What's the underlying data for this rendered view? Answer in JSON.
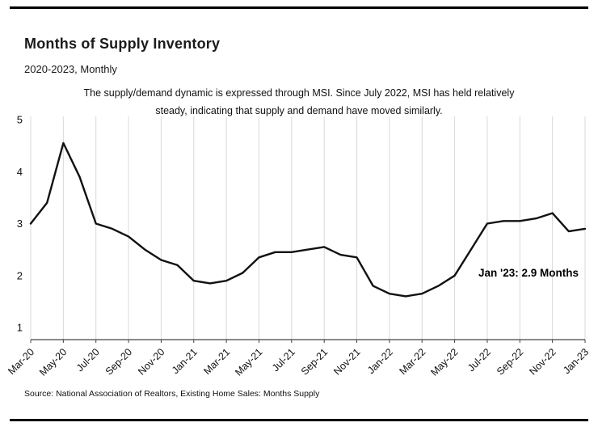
{
  "header": {
    "title": "Months of Supply Inventory",
    "subtitle": "2020-2023, Monthly",
    "description_line1": "The supply/demand dynamic is expressed through MSI. Since July 2022, MSI has held relatively",
    "description_line2": "steady, indicating that supply and demand have moved similarly."
  },
  "chart_data": {
    "type": "line",
    "title": "Months of Supply Inventory",
    "subtitle": "2020-2023, Monthly",
    "x": [
      "Mar-20",
      "Apr-20",
      "May-20",
      "Jun-20",
      "Jul-20",
      "Aug-20",
      "Sep-20",
      "Oct-20",
      "Nov-20",
      "Dec-20",
      "Jan-21",
      "Feb-21",
      "Mar-21",
      "Apr-21",
      "May-21",
      "Jun-21",
      "Jul-21",
      "Aug-21",
      "Sep-21",
      "Oct-21",
      "Nov-21",
      "Dec-21",
      "Jan-22",
      "Feb-22",
      "Mar-22",
      "Apr-22",
      "May-22",
      "Jun-22",
      "Jul-22",
      "Aug-22",
      "Sep-22",
      "Oct-22",
      "Nov-22",
      "Dec-22",
      "Jan-23"
    ],
    "values": [
      3.0,
      3.4,
      4.55,
      3.9,
      3.0,
      2.9,
      2.75,
      2.5,
      2.3,
      2.2,
      1.9,
      1.85,
      1.9,
      2.05,
      2.35,
      2.45,
      2.45,
      2.5,
      2.55,
      2.4,
      2.35,
      1.8,
      1.65,
      1.6,
      1.65,
      1.8,
      2.0,
      2.5,
      3.0,
      3.05,
      3.05,
      3.1,
      3.2,
      2.85,
      2.9
    ],
    "x_tick_labels_shown": [
      "Mar-20",
      "May-20",
      "Jul-20",
      "Sep-20",
      "Nov-20",
      "Jan-21",
      "Mar-21",
      "May-21",
      "Jul-21",
      "Sep-21",
      "Nov-21",
      "Jan-22",
      "Mar-22",
      "May-22",
      "Jul-22",
      "Sep-22",
      "Nov-22",
      "Jan-23"
    ],
    "y_ticks": [
      1,
      2,
      3,
      4,
      5
    ],
    "ylim": [
      0.8,
      5.2
    ],
    "xlabel": "",
    "ylabel": "",
    "grid": "vertical-only",
    "legend": "none",
    "annotation": "Jan '23: 2.9 Months",
    "unit": "months",
    "line_color": "#111111",
    "grid_color": "#d8d8d8",
    "axis_color": "#444444"
  },
  "footer": {
    "source": "Source:  National Association of Realtors, Existing Home Sales: Months Supply"
  }
}
